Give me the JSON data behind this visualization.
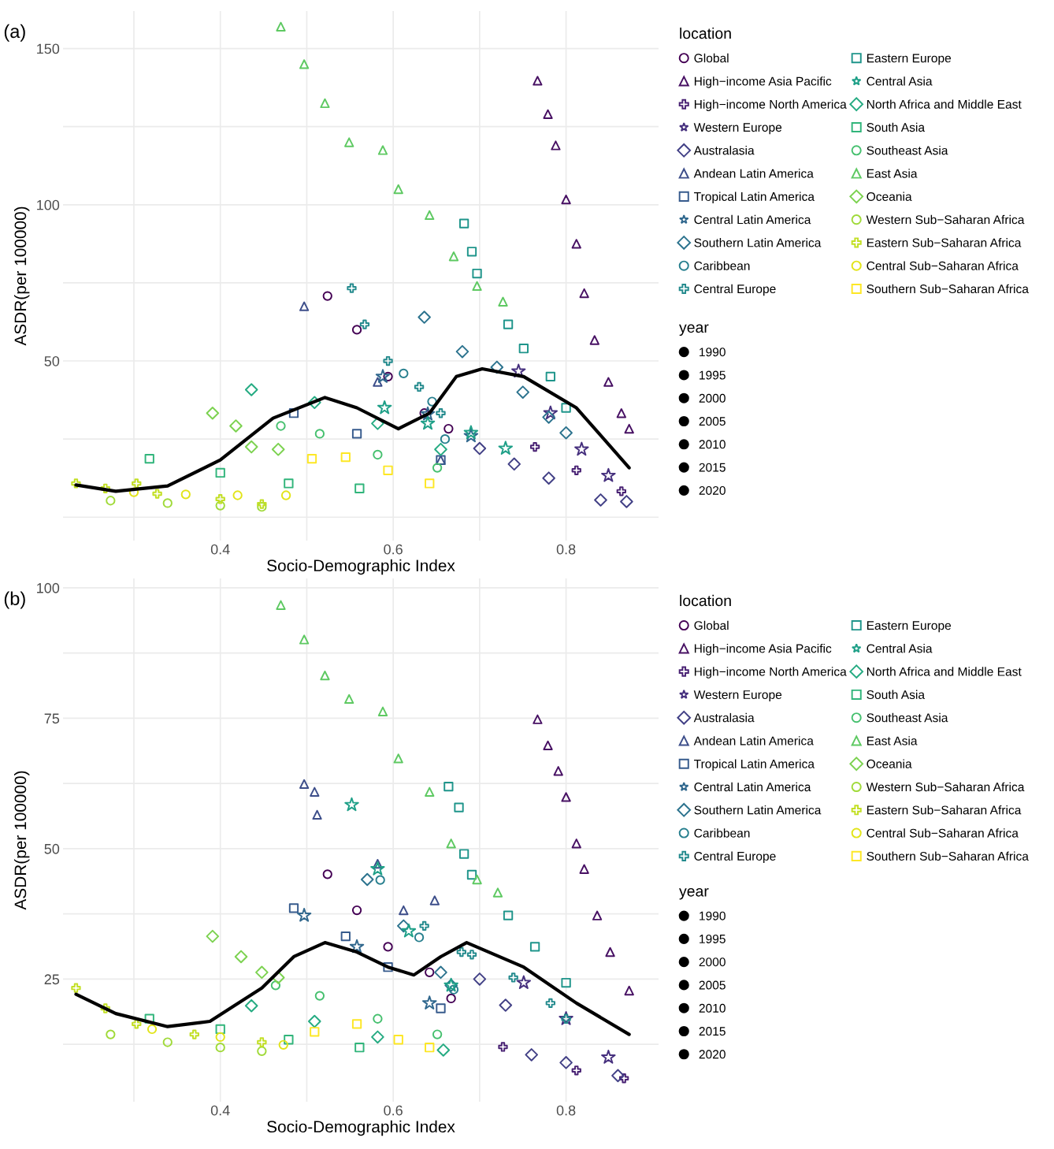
{
  "chart_data": [
    {
      "type": "bubble",
      "title": "(a)",
      "xlabel": "Socio-Demographic Index",
      "ylabel": "ASDR(per 100000)",
      "legend_title": "location",
      "annotations": [
        "year"
      ],
      "size_legend": [
        1990,
        1995,
        2000,
        2005,
        2010,
        2015,
        2020
      ],
      "legend": "right",
      "grid": true,
      "xlim": [
        0.218,
        0.907
      ],
      "ylim": [
        -7.5,
        162
      ],
      "xticks": [
        {
          "value": 0.3,
          "label": null
        },
        0.4,
        {
          "value": 0.5,
          "label": null
        },
        0.6,
        {
          "value": 0.7,
          "label": null
        },
        0.8
      ],
      "yticks": [
        {
          "value": 0,
          "label": null
        },
        {
          "value": 25,
          "label": null
        },
        50,
        {
          "value": 75,
          "label": null
        },
        100,
        {
          "value": 125,
          "label": null
        },
        150
      ],
      "series": [
        {
          "name": "Global",
          "color": "#440154",
          "marker": "circle",
          "x": [
            0.524,
            0.558,
            0.594,
            0.636,
            0.664
          ],
          "values": [
            70.8,
            60,
            45,
            33.3,
            28.3
          ],
          "sizes": [
            1990,
            1998,
            2005,
            2013,
            2021
          ]
        },
        {
          "name": "High−income Asia Pacific",
          "color": "#471063",
          "marker": "triangle",
          "x": [
            0.767,
            0.779,
            0.788,
            0.8,
            0.812,
            0.821,
            0.833,
            0.849,
            0.864,
            0.873
          ],
          "values": [
            139.7,
            129,
            119,
            101.7,
            87.5,
            71.7,
            56.7,
            43.3,
            33.3,
            28.3
          ],
          "sizes": [
            1990,
            1993,
            1997,
            2000,
            2004,
            2007,
            2011,
            2014,
            2018,
            2021
          ]
        },
        {
          "name": "High−income North America",
          "color": "#482173",
          "marker": "cross",
          "x": [
            0.764,
            0.812,
            0.864
          ],
          "values": [
            22.5,
            15,
            8.3
          ],
          "sizes": [
            1990,
            2005,
            2021
          ]
        },
        {
          "name": "Western Europe",
          "color": "#46307e",
          "marker": "star",
          "x": [
            0.745,
            0.782,
            0.818,
            0.849
          ],
          "values": [
            46.7,
            33.3,
            21.7,
            13.3
          ],
          "sizes": [
            1990,
            2000,
            2011,
            2021
          ]
        },
        {
          "name": "Australasia",
          "color": "#424086",
          "marker": "diamond",
          "x": [
            0.7,
            0.74,
            0.78,
            0.84,
            0.87
          ],
          "values": [
            22,
            17,
            12.5,
            5.5,
            5
          ],
          "sizes": [
            1990,
            1998,
            2005,
            2013,
            2021
          ]
        },
        {
          "name": "Andean Latin America",
          "color": "#3d4e8a",
          "marker": "triangle",
          "x": [
            0.497,
            0.582,
            0.655
          ],
          "values": [
            67.5,
            43.3,
            18.3
          ],
          "sizes": [
            1990,
            2005,
            2021
          ]
        },
        {
          "name": "Tropical Latin America",
          "color": "#375b8d",
          "marker": "square",
          "x": [
            0.485,
            0.558,
            0.655
          ],
          "values": [
            33.3,
            26.7,
            18.3
          ],
          "sizes": [
            1990,
            2005,
            2021
          ]
        },
        {
          "name": "Central Latin America",
          "color": "#31688e",
          "marker": "star",
          "x": [
            0.588,
            0.64,
            0.69
          ],
          "values": [
            45,
            33,
            26
          ],
          "sizes": [
            1990,
            2005,
            2021
          ]
        },
        {
          "name": "Southern Latin America",
          "color": "#2c738e",
          "marker": "diamond",
          "x": [
            0.636,
            0.68,
            0.72,
            0.75,
            0.78,
            0.8
          ],
          "values": [
            64,
            53,
            48,
            40,
            32,
            27
          ],
          "sizes": [
            1990,
            1996,
            2002,
            2009,
            2015,
            2021
          ]
        },
        {
          "name": "Caribbean",
          "color": "#277f8e",
          "marker": "circle",
          "x": [
            0.612,
            0.645,
            0.66
          ],
          "values": [
            46,
            37,
            25
          ],
          "sizes": [
            1990,
            2005,
            2021
          ]
        },
        {
          "name": "Central Europe",
          "color": "#238a8d",
          "marker": "cross",
          "x": [
            0.552,
            0.567,
            0.594,
            0.63,
            0.655
          ],
          "values": [
            73.3,
            61.7,
            50,
            41.7,
            33.3
          ],
          "sizes": [
            1990,
            1998,
            2005,
            2013,
            2021
          ]
        },
        {
          "name": "Eastern Europe",
          "color": "#1f958b",
          "marker": "square",
          "x": [
            0.682,
            0.691,
            0.697,
            0.733,
            0.751,
            0.782,
            0.8
          ],
          "values": [
            94,
            85,
            78,
            61.7,
            54,
            45,
            35
          ],
          "sizes": [
            1990,
            1995,
            2000,
            2005,
            2011,
            2016,
            2021
          ]
        },
        {
          "name": "Central Asia",
          "color": "#1fa088",
          "marker": "star",
          "x": [
            0.59,
            0.64,
            0.69,
            0.73
          ],
          "values": [
            35,
            30,
            27,
            22
          ],
          "sizes": [
            1990,
            2000,
            2011,
            2021
          ]
        },
        {
          "name": "North Africa and Middle East",
          "color": "#25ab82",
          "marker": "diamond",
          "x": [
            0.436,
            0.509,
            0.582,
            0.655
          ],
          "values": [
            40.8,
            36.7,
            30,
            21.7
          ],
          "sizes": [
            1990,
            2000,
            2011,
            2021
          ]
        },
        {
          "name": "South Asia",
          "color": "#31b57b",
          "marker": "square",
          "x": [
            0.318,
            0.4,
            0.479,
            0.561
          ],
          "values": [
            18.7,
            14.2,
            10.8,
            9.2
          ],
          "sizes": [
            1990,
            2000,
            2011,
            2021
          ]
        },
        {
          "name": "Southeast Asia",
          "color": "#46c06f",
          "marker": "circle",
          "x": [
            0.47,
            0.515,
            0.582,
            0.651
          ],
          "values": [
            29.2,
            26.7,
            20,
            15.8
          ],
          "sizes": [
            1990,
            2000,
            2011,
            2021
          ]
        },
        {
          "name": "East Asia",
          "color": "#5ec962",
          "marker": "triangle",
          "x": [
            0.47,
            0.497,
            0.521,
            0.549,
            0.588,
            0.606,
            0.642,
            0.67,
            0.697,
            0.727
          ],
          "values": [
            157,
            145,
            132.5,
            120,
            117.5,
            105,
            96.7,
            83.5,
            74,
            69
          ],
          "sizes": [
            1990,
            1993,
            1997,
            2000,
            2004,
            2007,
            2011,
            2014,
            2018,
            2021
          ]
        },
        {
          "name": "Oceania",
          "color": "#7cd250",
          "marker": "diamond",
          "x": [
            0.391,
            0.418,
            0.436,
            0.467
          ],
          "values": [
            33.3,
            29.2,
            22.5,
            21.7
          ],
          "sizes": [
            1990,
            2000,
            2011,
            2021
          ]
        },
        {
          "name": "Western Sub−Saharan Africa",
          "color": "#a0da39",
          "marker": "circle",
          "x": [
            0.273,
            0.339,
            0.4,
            0.448
          ],
          "values": [
            5.3,
            4.5,
            3.7,
            3.3
          ],
          "sizes": [
            1990,
            2000,
            2011,
            2021
          ]
        },
        {
          "name": "Eastern Sub−Saharan Africa",
          "color": "#c2df23",
          "marker": "cross",
          "x": [
            0.233,
            0.267,
            0.303,
            0.327,
            0.4,
            0.448
          ],
          "values": [
            10.8,
            9.2,
            10.8,
            7.5,
            5.8,
            4.2
          ],
          "sizes": [
            1990,
            1996,
            2002,
            2009,
            2015,
            2021
          ]
        },
        {
          "name": "Central Sub−Saharan Africa",
          "color": "#e2e418",
          "marker": "circle",
          "x": [
            0.3,
            0.36,
            0.42,
            0.476
          ],
          "values": [
            8,
            7.3,
            7,
            7
          ],
          "sizes": [
            1990,
            2000,
            2011,
            2021
          ]
        },
        {
          "name": "Southern Sub−Saharan Africa",
          "color": "#fde725",
          "marker": "square",
          "x": [
            0.506,
            0.545,
            0.594,
            0.642
          ],
          "values": [
            18.7,
            19.2,
            15,
            10.8
          ],
          "sizes": [
            1990,
            2000,
            2011,
            2021
          ]
        },
        {
          "type": "line",
          "color": "#000000",
          "x": [
            0.233,
            0.279,
            0.339,
            0.4,
            0.461,
            0.521,
            0.558,
            0.606,
            0.642,
            0.673,
            0.703,
            0.751,
            0.812,
            0.873
          ],
          "values": [
            10.3,
            8.3,
            10,
            18.3,
            31.7,
            38.3,
            35,
            28.3,
            33.3,
            45,
            47.5,
            45,
            35,
            15.8
          ]
        }
      ]
    },
    {
      "type": "bubble",
      "title": "(b)",
      "xlabel": "Socio-Demographic Index",
      "ylabel": "ASDR(per 100000)",
      "legend_title": "location",
      "annotations": [
        "year"
      ],
      "size_legend": [
        1990,
        1995,
        2000,
        2005,
        2010,
        2015,
        2020
      ],
      "legend": "right",
      "grid": true,
      "xlim": [
        0.218,
        0.907
      ],
      "ylim": [
        1.5,
        101.8
      ],
      "xticks": [
        {
          "value": 0.3,
          "label": null
        },
        0.4,
        {
          "value": 0.5,
          "label": null
        },
        0.6,
        {
          "value": 0.7,
          "label": null
        },
        0.8
      ],
      "yticks": [
        {
          "value": 12.5,
          "label": null
        },
        25,
        {
          "value": 37.5,
          "label": null
        },
        50,
        {
          "value": 62.5,
          "label": null
        },
        75,
        {
          "value": 87.5,
          "label": null
        },
        100
      ],
      "series": [
        {
          "name": "Global",
          "color": "#440154",
          "marker": "circle",
          "x": [
            0.524,
            0.558,
            0.594,
            0.642,
            0.667
          ],
          "values": [
            45.1,
            38.2,
            31.2,
            26.3,
            21.3
          ],
          "sizes": [
            1990,
            1998,
            2005,
            2013,
            2021
          ]
        },
        {
          "name": "High−income Asia Pacific",
          "color": "#471063",
          "marker": "triangle",
          "x": [
            0.767,
            0.779,
            0.791,
            0.8,
            0.812,
            0.821,
            0.836,
            0.851,
            0.873
          ],
          "values": [
            74.8,
            69.8,
            64.9,
            59.9,
            51,
            46.1,
            37.2,
            30.2,
            22.8
          ],
          "sizes": [
            1990,
            1994,
            1998,
            2002,
            2006,
            2009,
            2013,
            2017,
            2021
          ]
        },
        {
          "name": "High−income North America",
          "color": "#482173",
          "marker": "cross",
          "x": [
            0.727,
            0.812,
            0.867
          ],
          "values": [
            12,
            7.5,
            6
          ],
          "sizes": [
            1990,
            2005,
            2021
          ]
        },
        {
          "name": "Western Europe",
          "color": "#46307e",
          "marker": "star",
          "x": [
            0.751,
            0.8,
            0.849
          ],
          "values": [
            24.3,
            17.4,
            10
          ],
          "sizes": [
            1990,
            2005,
            2021
          ]
        },
        {
          "name": "Australasia",
          "color": "#424086",
          "marker": "diamond",
          "x": [
            0.7,
            0.73,
            0.76,
            0.8,
            0.86
          ],
          "values": [
            25,
            20,
            10.5,
            9,
            6.5
          ],
          "sizes": [
            1990,
            1998,
            2005,
            2013,
            2021
          ]
        },
        {
          "name": "Andean Latin America",
          "color": "#3d4e8a",
          "marker": "triangle",
          "x": [
            0.497,
            0.509,
            0.512,
            0.582,
            0.612,
            0.648
          ],
          "values": [
            62.4,
            60.9,
            56.5,
            47.1,
            38.2,
            40.1
          ],
          "sizes": [
            1990,
            1996,
            2002,
            2009,
            2015,
            2021
          ]
        },
        {
          "name": "Tropical Latin America",
          "color": "#375b8d",
          "marker": "square",
          "x": [
            0.485,
            0.545,
            0.594,
            0.655
          ],
          "values": [
            38.6,
            33.2,
            27.3,
            19.4
          ],
          "sizes": [
            1990,
            2000,
            2011,
            2021
          ]
        },
        {
          "name": "Central Latin America",
          "color": "#31688e",
          "marker": "star",
          "x": [
            0.497,
            0.558,
            0.642
          ],
          "values": [
            37.2,
            31.2,
            20.4
          ],
          "sizes": [
            1990,
            2005,
            2021
          ]
        },
        {
          "name": "Southern Latin America",
          "color": "#2c738e",
          "marker": "diamond",
          "x": [
            0.57,
            0.612,
            0.655,
            0.667
          ],
          "values": [
            44.1,
            35.2,
            26.3,
            23.8
          ],
          "sizes": [
            1990,
            2000,
            2011,
            2021
          ]
        },
        {
          "name": "Caribbean",
          "color": "#277f8e",
          "marker": "circle",
          "x": [
            0.585,
            0.63,
            0.67
          ],
          "values": [
            44,
            33,
            23
          ],
          "sizes": [
            1990,
            2005,
            2021
          ]
        },
        {
          "name": "Central Europe",
          "color": "#238a8d",
          "marker": "cross",
          "x": [
            0.636,
            0.679,
            0.691,
            0.739,
            0.782,
            0.8
          ],
          "values": [
            35.2,
            30.2,
            29.7,
            25.3,
            20.4,
            17.4
          ],
          "sizes": [
            1990,
            1996,
            2002,
            2009,
            2015,
            2021
          ]
        },
        {
          "name": "Eastern Europe",
          "color": "#1f958b",
          "marker": "square",
          "x": [
            0.664,
            0.676,
            0.682,
            0.691,
            0.733,
            0.764,
            0.8
          ],
          "values": [
            61.9,
            57.9,
            49,
            45,
            37.2,
            31.2,
            24.3
          ],
          "sizes": [
            1990,
            1995,
            2000,
            2005,
            2011,
            2016,
            2021
          ]
        },
        {
          "name": "Central Asia",
          "color": "#1fa088",
          "marker": "star",
          "x": [
            0.552,
            0.582,
            0.618,
            0.667
          ],
          "values": [
            58.4,
            46.1,
            34.2,
            23.8
          ],
          "sizes": [
            1990,
            2000,
            2011,
            2021
          ]
        },
        {
          "name": "North Africa and Middle East",
          "color": "#25ab82",
          "marker": "diamond",
          "x": [
            0.436,
            0.509,
            0.582,
            0.658
          ],
          "values": [
            19.9,
            16.9,
            13.9,
            11.4
          ],
          "sizes": [
            1990,
            2000,
            2011,
            2021
          ]
        },
        {
          "name": "South Asia",
          "color": "#31b57b",
          "marker": "square",
          "x": [
            0.318,
            0.4,
            0.479,
            0.561
          ],
          "values": [
            17.4,
            15.4,
            13.4,
            11.9
          ],
          "sizes": [
            1990,
            2000,
            2011,
            2021
          ]
        },
        {
          "name": "Southeast Asia",
          "color": "#46c06f",
          "marker": "circle",
          "x": [
            0.464,
            0.515,
            0.582,
            0.651
          ],
          "values": [
            23.8,
            21.8,
            17.4,
            14.4
          ],
          "sizes": [
            1990,
            2000,
            2011,
            2021
          ]
        },
        {
          "name": "East Asia",
          "color": "#5ec962",
          "marker": "triangle",
          "x": [
            0.47,
            0.497,
            0.521,
            0.549,
            0.588,
            0.606,
            0.642,
            0.667,
            0.697,
            0.721
          ],
          "values": [
            96.7,
            90.1,
            83.2,
            78.7,
            76.3,
            67.3,
            60.9,
            51,
            44.1,
            41.6
          ],
          "sizes": [
            1990,
            1993,
            1997,
            2000,
            2004,
            2007,
            2011,
            2014,
            2018,
            2021
          ]
        },
        {
          "name": "Oceania",
          "color": "#7cd250",
          "marker": "diamond",
          "x": [
            0.391,
            0.424,
            0.448,
            0.467
          ],
          "values": [
            33.2,
            29.3,
            26.3,
            25.3
          ],
          "sizes": [
            1990,
            2000,
            2011,
            2021
          ]
        },
        {
          "name": "Western Sub−Saharan Africa",
          "color": "#a0da39",
          "marker": "circle",
          "x": [
            0.273,
            0.339,
            0.4,
            0.448
          ],
          "values": [
            14.4,
            12.9,
            11.9,
            11.2
          ],
          "sizes": [
            1990,
            2000,
            2011,
            2021
          ]
        },
        {
          "name": "Eastern Sub−Saharan Africa",
          "color": "#c2df23",
          "marker": "cross",
          "x": [
            0.233,
            0.267,
            0.303,
            0.37,
            0.448
          ],
          "values": [
            23.3,
            19.4,
            16.4,
            14.4,
            12.9
          ],
          "sizes": [
            1990,
            1998,
            2005,
            2013,
            2021
          ]
        },
        {
          "name": "Central Sub−Saharan Africa",
          "color": "#e2e418",
          "marker": "circle",
          "x": [
            0.321,
            0.4,
            0.473
          ],
          "values": [
            15.4,
            13.9,
            12.4
          ],
          "sizes": [
            1990,
            2005,
            2021
          ]
        },
        {
          "name": "Southern Sub−Saharan Africa",
          "color": "#fde725",
          "marker": "square",
          "x": [
            0.509,
            0.558,
            0.606,
            0.642
          ],
          "values": [
            14.9,
            16.4,
            13.4,
            11.9
          ],
          "sizes": [
            1990,
            2000,
            2011,
            2021
          ]
        },
        {
          "type": "line",
          "color": "#000000",
          "x": [
            0.233,
            0.279,
            0.339,
            0.388,
            0.448,
            0.485,
            0.521,
            0.558,
            0.594,
            0.624,
            0.655,
            0.685,
            0.751,
            0.812,
            0.873
          ],
          "values": [
            22.1,
            18.4,
            15.9,
            16.9,
            23.3,
            29.3,
            32,
            30.2,
            27.3,
            25.8,
            29.3,
            32,
            27.3,
            20.4,
            14.4
          ]
        }
      ]
    }
  ]
}
